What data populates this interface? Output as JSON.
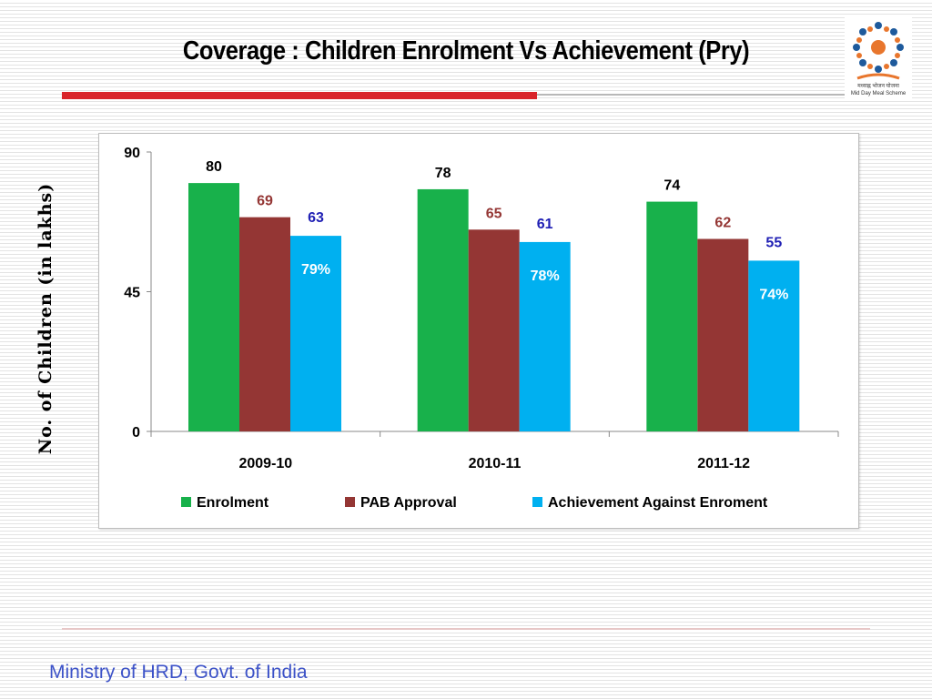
{
  "slide": {
    "title": "Coverage : Children Enrolment Vs Achievement (Pry)",
    "footer": "Ministry of HRD, Govt. of India",
    "logo_text": [
      "मध्याह्न भोजन योजना",
      "Mid Day Meal Scheme"
    ]
  },
  "chart_data": {
    "type": "bar",
    "title": "",
    "ylabel": "No. of Children (in lakhs)",
    "xlabel": "",
    "ylim": [
      0,
      90
    ],
    "yticks": [
      0,
      45,
      90
    ],
    "categories": [
      "2009-10",
      "2010-11",
      "2011-12"
    ],
    "series": [
      {
        "name": "Enrolment",
        "values": [
          80,
          78,
          74
        ],
        "color": "#18b14b",
        "label_color": "#000000"
      },
      {
        "name": "PAB Approval",
        "values": [
          69,
          65,
          62
        ],
        "color": "#943634",
        "label_color": "#943634"
      },
      {
        "name": "Achievement Against Enroment",
        "values": [
          63,
          61,
          55
        ],
        "color": "#00b0f0",
        "label_color": "#1f1fb4"
      }
    ],
    "annotations": [
      "79%",
      "78%",
      "74%"
    ],
    "legend": "bottom",
    "grid": false
  }
}
